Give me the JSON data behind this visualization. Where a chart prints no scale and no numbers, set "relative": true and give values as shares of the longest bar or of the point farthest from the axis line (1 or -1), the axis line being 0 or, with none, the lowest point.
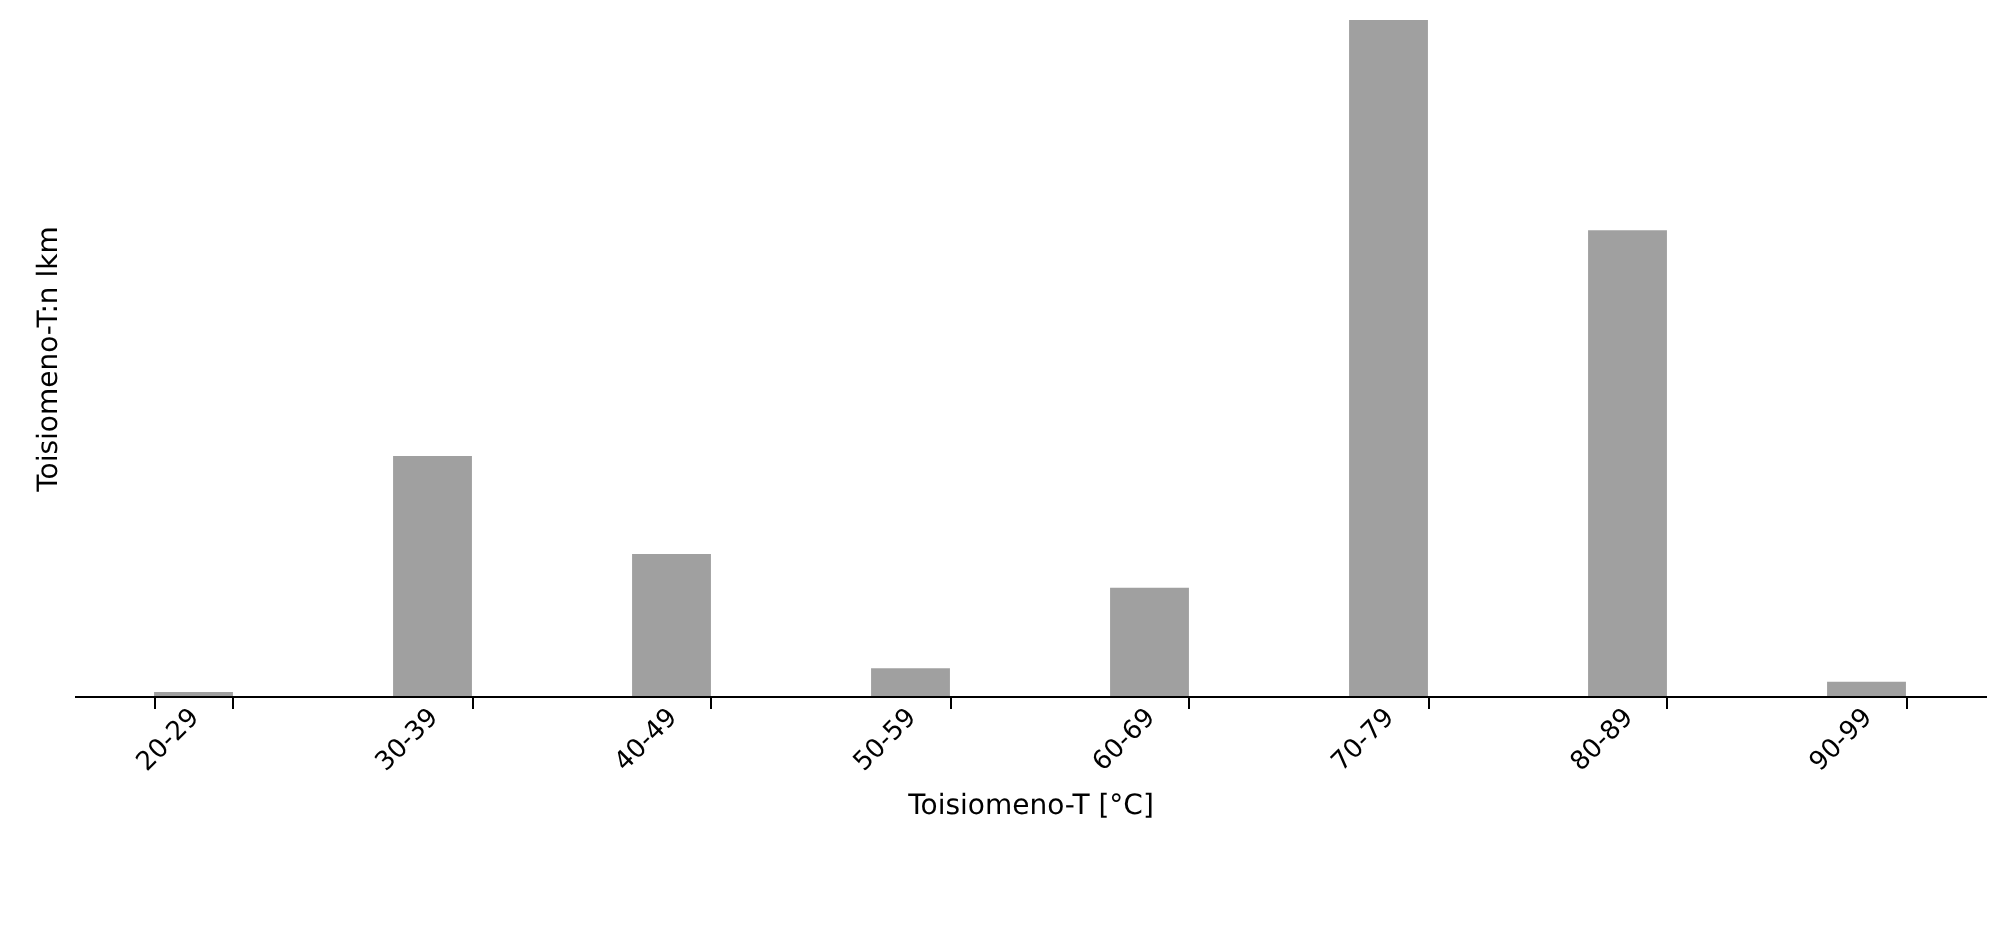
{
  "chart_data": {
    "type": "bar",
    "relative": true,
    "xlabel": "Toisiomeno-T [°C]",
    "ylabel": "Toisiomeno-T:n lkm",
    "categories": [
      "20-29",
      "30-39",
      "40-49",
      "50-59",
      "60-69",
      "70-79",
      "80-89",
      "90-99"
    ],
    "values": [
      0.006,
      0.355,
      0.21,
      0.041,
      0.16,
      1,
      0.689,
      0.021
    ],
    "color": "#a0a0a0",
    "grid": false
  }
}
